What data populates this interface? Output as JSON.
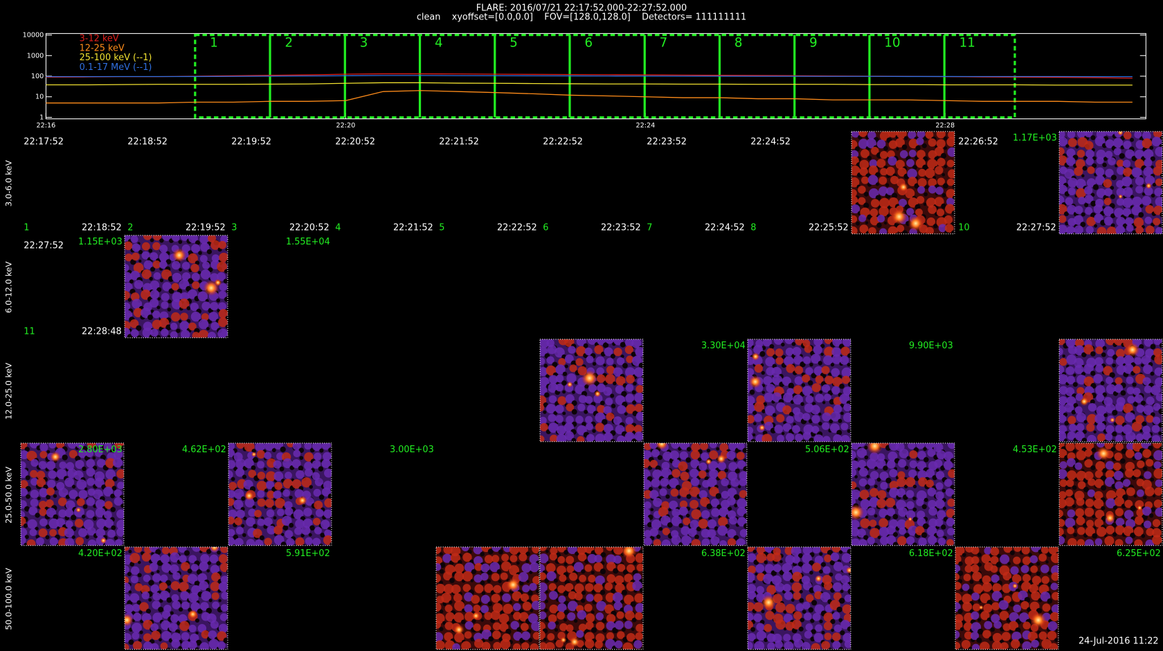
{
  "header": {
    "title": "FLARE: 2016/07/21 22:17:52.000-22:27:52.000",
    "subtitle": "clean    xyoffset=[0.0,0.0]    FOV=[128.0,128.0]    Detectors= 111111111"
  },
  "chart_data": {
    "type": "line",
    "log_scale_y": true,
    "x": [
      0,
      0.5,
      1,
      1.5,
      2,
      2.5,
      3,
      3.5,
      4,
      4.5,
      5,
      5.5,
      6,
      6.5,
      7,
      7.5,
      8,
      8.5,
      9,
      9.5,
      10,
      10.5,
      11,
      11.5,
      12,
      12.5,
      13,
      13.5,
      14,
      14.5
    ],
    "xlim": [
      0,
      14.68
    ],
    "xticks": [
      {
        "value": 0,
        "label": "22:16"
      },
      {
        "value": 4,
        "label": "22:20"
      },
      {
        "value": 8,
        "label": "22:24"
      },
      {
        "value": 12,
        "label": "22:28"
      }
    ],
    "ylim": [
      1,
      10000
    ],
    "yticks": [
      1,
      10,
      100,
      1000,
      10000
    ],
    "series": [
      {
        "name": "3-12 keV",
        "color": "#e0201c",
        "values": [
          90,
          92,
          95,
          95,
          100,
          105,
          110,
          115,
          125,
          130,
          130,
          128,
          125,
          122,
          120,
          118,
          115,
          112,
          110,
          108,
          105,
          102,
          100,
          98,
          95,
          92,
          90,
          88,
          85,
          80
        ]
      },
      {
        "name": "12-25 keV",
        "color": "#ff8c1a",
        "values": [
          5,
          5,
          5,
          5,
          5.5,
          5.5,
          6,
          6,
          6.5,
          18,
          20,
          18,
          16,
          14,
          12,
          11,
          10,
          9,
          9,
          8,
          8,
          7,
          7,
          7,
          6.5,
          6,
          6,
          6,
          5.5,
          5.5
        ]
      },
      {
        "name": "25-100 keV (--1)",
        "color": "#f0e030",
        "values": [
          38,
          38,
          39,
          40,
          40,
          40,
          41,
          42,
          45,
          48,
          48,
          46,
          45,
          44,
          43,
          42,
          42,
          41,
          41,
          40,
          40,
          40,
          39,
          39,
          38,
          38,
          38,
          37,
          37,
          37
        ]
      },
      {
        "name": "0.1-17 MeV (--1)",
        "color": "#3070e0",
        "values": [
          95,
          95,
          96,
          96,
          97,
          98,
          100,
          102,
          105,
          108,
          108,
          106,
          105,
          104,
          103,
          102,
          101,
          100,
          100,
          99,
          99,
          98,
          98,
          97,
          97,
          96,
          96,
          96,
          95,
          95
        ]
      }
    ],
    "intervals": {
      "color": "#22ee22",
      "boundaries": [
        1.99,
        2.99,
        3.99,
        4.99,
        5.99,
        6.99,
        7.99,
        8.99,
        9.99,
        10.99,
        11.99,
        12.93
      ],
      "labels": [
        "1",
        "2",
        "3",
        "4",
        "5",
        "6",
        "7",
        "8",
        "9",
        "10",
        "11"
      ]
    }
  },
  "row_labels": [
    "3.0-6.0 keV",
    "6.0-12.0 keV",
    "12.0-25.0 keV",
    "25.0-50.0 keV",
    "50.0-100.0 keV"
  ],
  "panels": [
    [
      {
        "start": "22:17:52",
        "index": "1",
        "end": "22:18:52"
      },
      {
        "start": "22:18:52",
        "index": "2",
        "end": "22:19:52"
      },
      {
        "start": "22:19:52",
        "index": "3",
        "end": "22:20:52"
      },
      {
        "start": "22:20:52",
        "index": "4",
        "end": "22:21:52"
      },
      {
        "start": "22:21:52",
        "index": "5",
        "end": "22:22:52"
      },
      {
        "start": "22:22:52",
        "index": "6",
        "end": "22:23:52"
      },
      {
        "start": "22:23:52",
        "index": "7",
        "end": "22:24:52"
      },
      {
        "start": "22:24:52",
        "index": "8",
        "end": "22:25:52"
      },
      {
        "image": true
      },
      {
        "start": "22:26:52",
        "peak": "1.17E+03",
        "index": "10",
        "end": "22:27:52"
      },
      {
        "image": true
      }
    ],
    [
      {
        "start": "22:27:52",
        "peak": "1.15E+03",
        "index": "11",
        "end": "22:28:48"
      },
      {
        "image": true
      },
      {
        "peak": "1.55E+04"
      },
      null,
      null,
      null,
      null,
      null,
      null,
      null,
      null
    ],
    [
      null,
      null,
      null,
      null,
      null,
      {
        "image": true
      },
      {
        "peak": "3.30E+04"
      },
      {
        "image": true
      },
      {
        "peak": "9.90E+03"
      },
      null,
      {
        "image": true
      }
    ],
    [
      {
        "image": true,
        "peak": "2.80E+03"
      },
      {
        "peak": "4.62E+02"
      },
      {
        "image": true
      },
      {
        "peak": "3.00E+03"
      },
      null,
      null,
      {
        "image": true
      },
      {
        "peak": "5.06E+02"
      },
      {
        "image": true
      },
      {
        "peak": "4.53E+02"
      },
      {
        "image": true
      }
    ],
    [
      {
        "peak": "4.20E+02"
      },
      {
        "image": true
      },
      {
        "peak": "5.91E+02"
      },
      null,
      {
        "image": true
      },
      {
        "image": true
      },
      {
        "peak": "6.38E+02"
      },
      {
        "image": true
      },
      {
        "peak": "6.18E+02"
      },
      {
        "image": true
      },
      {
        "peak": "6.25E+02"
      }
    ]
  ],
  "footer": "24-Jul-2016 11:22"
}
